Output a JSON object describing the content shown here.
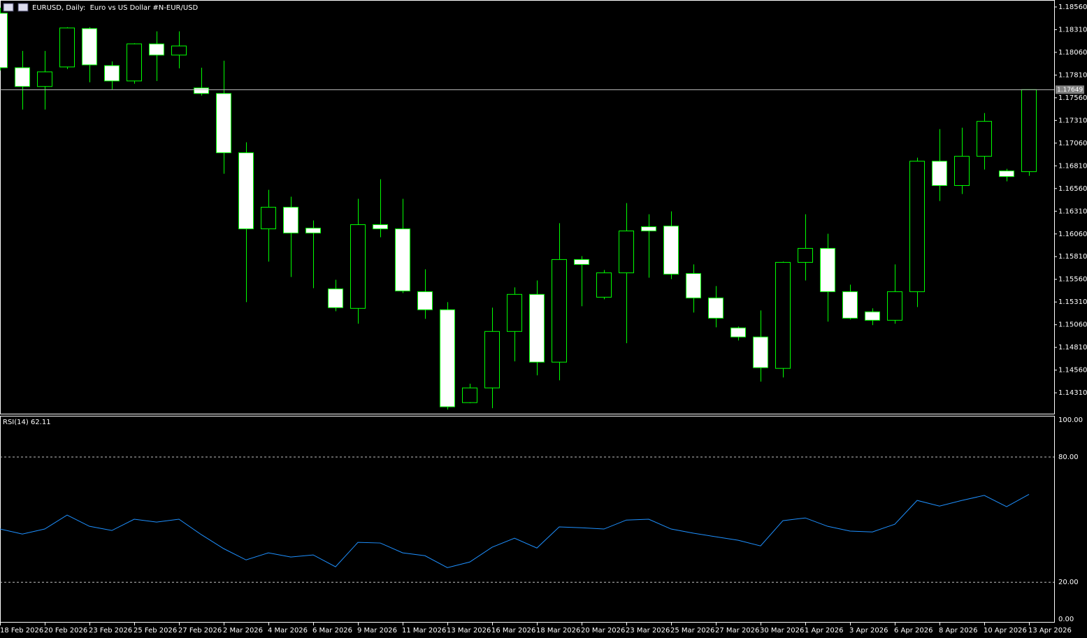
{
  "chart_data": [
    {
      "type": "candlestick",
      "title": "EURUSD, Daily:  Euro vs US Dollar #N-EUR/USD",
      "categories": [
        "18 Feb 2026",
        null,
        "20 Feb 2026",
        null,
        "23 Feb 2026",
        null,
        "25 Feb 2026",
        null,
        "27 Feb 2026",
        null,
        "2 Mar 2026",
        null,
        "4 Mar 2026",
        null,
        "6 Mar 2026",
        null,
        "9 Mar 2026",
        null,
        "11 Mar 2026",
        null,
        "13 Mar 2026",
        null,
        "16 Mar 2026",
        null,
        "18 Mar 2026",
        null,
        "20 Mar 2026",
        null,
        "23 Mar 2026",
        null,
        "25 Mar 2026",
        null,
        "27 Mar 2026",
        null,
        "30 Mar 2026",
        null,
        "1 Apr 2026",
        null,
        "3 Apr 2026",
        null,
        "6 Apr 2026",
        null,
        "8 Apr 2026",
        null,
        "10 Apr 2026",
        null,
        "13 Apr 2026"
      ],
      "open": [
        1.18491,
        1.17891,
        1.17684,
        1.17899,
        1.18322,
        1.17914,
        1.17745,
        1.18153,
        1.1803,
        1.17668,
        1.17607,
        1.16954,
        1.16116,
        1.16354,
        1.16124,
        1.15455,
        1.1524,
        1.16162,
        1.16116,
        1.15424,
        1.15225,
        1.14202,
        1.14364,
        1.14986,
        1.15394,
        1.14648,
        1.15778,
        1.15363,
        1.15632,
        1.16139,
        1.16147,
        1.15624,
        1.15355,
        1.15025,
        1.14925,
        1.14579,
        1.15747,
        1.15901,
        1.15424,
        1.15202,
        1.15109,
        1.15424,
        1.16861,
        1.16593,
        1.16915,
        1.16754,
        1.16746
      ],
      "high": [
        1.18552,
        1.18076,
        1.18076,
        1.18337,
        1.18337,
        1.1796,
        1.1816,
        1.18291,
        1.18291,
        1.17891,
        1.17968,
        1.17069,
        1.16546,
        1.1647,
        1.16208,
        1.15555,
        1.16447,
        1.16662,
        1.16447,
        1.1567,
        1.15309,
        1.1441,
        1.15248,
        1.15471,
        1.15547,
        1.16178,
        1.15816,
        1.15663,
        1.164,
        1.16277,
        1.16308,
        1.15724,
        1.15486,
        1.1504,
        1.15217,
        1.15755,
        1.16277,
        1.16062,
        1.15501,
        1.1524,
        1.15724,
        1.169,
        1.17215,
        1.1723,
        1.17392,
        1.16777,
        1.17649
      ],
      "low": [
        1.17861,
        1.1743,
        1.1743,
        1.17876,
        1.1773,
        1.17653,
        1.17715,
        1.17745,
        1.17884,
        1.17584,
        1.16723,
        1.15309,
        1.15755,
        1.15586,
        1.15463,
        1.15209,
        1.15071,
        1.16024,
        1.15409,
        1.15125,
        1.14126,
        1.14195,
        1.14141,
        1.14656,
        1.14502,
        1.14448,
        1.15263,
        1.1534,
        1.14856,
        1.15578,
        1.15563,
        1.15194,
        1.15032,
        1.14886,
        1.14433,
        1.14479,
        1.15547,
        1.15094,
        1.15117,
        1.15056,
        1.15071,
        1.15255,
        1.16423,
        1.165,
        1.16769,
        1.16639,
        1.167
      ],
      "close": [
        1.17891,
        1.17684,
        1.17845,
        1.18329,
        1.17922,
        1.17745,
        1.18153,
        1.1803,
        1.1813,
        1.17607,
        1.16954,
        1.16116,
        1.16354,
        1.1607,
        1.1607,
        1.15248,
        1.16162,
        1.16116,
        1.15432,
        1.15225,
        1.14156,
        1.14364,
        1.14986,
        1.15394,
        1.14648,
        1.15778,
        1.15724,
        1.15632,
        1.16093,
        1.16093,
        1.15617,
        1.15355,
        1.15132,
        1.14925,
        1.14587,
        1.15747,
        1.15901,
        1.15424,
        1.15132,
        1.15109,
        1.15424,
        1.16861,
        1.16593,
        1.16915,
        1.173,
        1.16692,
        1.17649
      ],
      "color": "#00ff00",
      "bear_fill": "#ffffff",
      "bull_fill": "#000000",
      "current_price": 1.17649,
      "current_price_color": "#c0c0c0",
      "ylim": [
        1.1408,
        1.18629
      ],
      "yticks": [
        {
          "value": 1.1856,
          "label": "1.18560"
        },
        {
          "value": 1.1831,
          "label": "1.18310"
        },
        {
          "value": 1.1806,
          "label": "1.18060"
        },
        {
          "value": 1.1781,
          "label": "1.17810"
        },
        {
          "value": 1.1756,
          "label": "1.17560"
        },
        {
          "value": 1.1731,
          "label": "1.17310"
        },
        {
          "value": 1.1706,
          "label": "1.17060"
        },
        {
          "value": 1.1681,
          "label": "1.16810"
        },
        {
          "value": 1.1656,
          "label": "1.16560"
        },
        {
          "value": 1.1631,
          "label": "1.16310"
        },
        {
          "value": 1.1606,
          "label": "1.16060"
        },
        {
          "value": 1.1581,
          "label": "1.15810"
        },
        {
          "value": 1.1556,
          "label": "1.15560"
        },
        {
          "value": 1.1531,
          "label": "1.15310"
        },
        {
          "value": 1.1506,
          "label": "1.15060"
        },
        {
          "value": 1.1481,
          "label": "1.14810"
        },
        {
          "value": 1.1456,
          "label": "1.14560"
        },
        {
          "value": 1.1431,
          "label": "1.14310"
        }
      ]
    },
    {
      "type": "line",
      "title": "RSI(14) 62.11",
      "color": "#1e90ff",
      "values": [
        45.5,
        43.1,
        45.5,
        52.2,
        46.8,
        44.8,
        50.2,
        48.8,
        50.2,
        42.8,
        36.1,
        30.7,
        34.1,
        32.1,
        33.1,
        27.4,
        39.1,
        38.8,
        34.1,
        32.7,
        27.0,
        29.7,
        36.8,
        41.1,
        36.4,
        46.5,
        46.1,
        45.5,
        49.8,
        50.2,
        45.5,
        43.5,
        41.8,
        40.1,
        37.4,
        49.5,
        50.8,
        46.8,
        44.5,
        44.1,
        47.8,
        59.2,
        56.5,
        59.2,
        61.6,
        56.2,
        62.11
      ],
      "ylim": [
        1,
        99.4
      ],
      "yticks": [
        {
          "value": 100,
          "label": "100.00"
        },
        {
          "value": 80,
          "label": "80.00"
        },
        {
          "value": 20,
          "label": "20.00"
        },
        {
          "value": 0,
          "label": "0.00"
        }
      ]
    }
  ]
}
